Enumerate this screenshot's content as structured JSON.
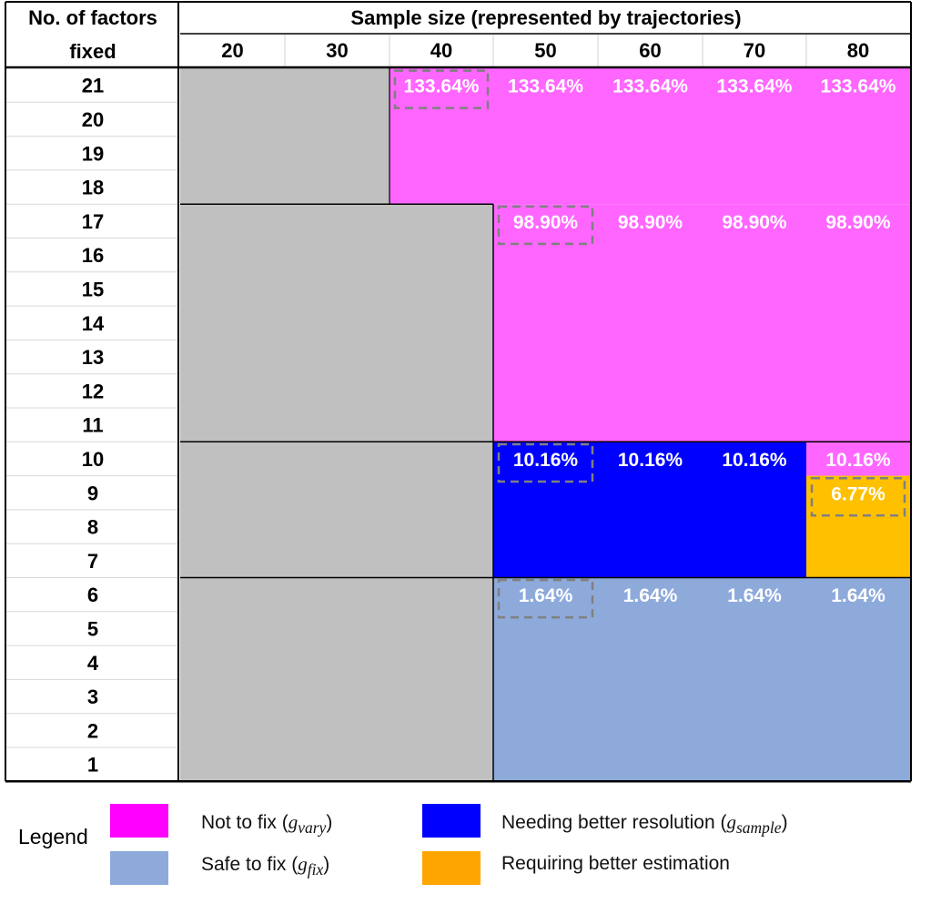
{
  "chart_data": {
    "type": "table",
    "header": {
      "row_header_line1": "No. of factors",
      "row_header_line2": "fixed",
      "column_group": "Sample size (represented by trajectories)"
    },
    "columns": [
      "20",
      "30",
      "40",
      "50",
      "60",
      "70",
      "80"
    ],
    "rows": [
      "21",
      "20",
      "19",
      "18",
      "17",
      "16",
      "15",
      "14",
      "13",
      "12",
      "11",
      "10",
      "9",
      "8",
      "7",
      "6",
      "5",
      "4",
      "3",
      "2",
      "1"
    ],
    "regions": [
      {
        "category": "none",
        "color": "#c0c0c0",
        "col_start": 0,
        "col_end": 1,
        "row_start": 0,
        "row_end": 3
      },
      {
        "category": "vary",
        "color": "#ff66ff",
        "col_start": 2,
        "col_end": 6,
        "row_start": 0,
        "row_end": 3
      },
      {
        "category": "none",
        "color": "#c0c0c0",
        "col_start": 0,
        "col_end": 2,
        "row_start": 4,
        "row_end": 10
      },
      {
        "category": "vary",
        "color": "#ff66ff",
        "col_start": 3,
        "col_end": 6,
        "row_start": 4,
        "row_end": 10
      },
      {
        "category": "none",
        "color": "#c0c0c0",
        "col_start": 0,
        "col_end": 2,
        "row_start": 11,
        "row_end": 14
      },
      {
        "category": "sample",
        "color": "#0000ff",
        "col_start": 3,
        "col_end": 5,
        "row_start": 11,
        "row_end": 14
      },
      {
        "category": "vary",
        "color": "#ff66ff",
        "col_start": 6,
        "col_end": 6,
        "row_start": 11,
        "row_end": 11
      },
      {
        "category": "estimation",
        "color": "#ffc000",
        "col_start": 6,
        "col_end": 6,
        "row_start": 12,
        "row_end": 14
      },
      {
        "category": "none",
        "color": "#c0c0c0",
        "col_start": 0,
        "col_end": 2,
        "row_start": 15,
        "row_end": 20
      },
      {
        "category": "fix",
        "color": "#8eaadb",
        "col_start": 3,
        "col_end": 6,
        "row_start": 15,
        "row_end": 20
      }
    ],
    "cell_labels": [
      {
        "col": 2,
        "row": 0,
        "text": "133.64%",
        "boxed": true
      },
      {
        "col": 3,
        "row": 0,
        "text": "133.64%"
      },
      {
        "col": 4,
        "row": 0,
        "text": "133.64%"
      },
      {
        "col": 5,
        "row": 0,
        "text": "133.64%"
      },
      {
        "col": 6,
        "row": 0,
        "text": "133.64%"
      },
      {
        "col": 3,
        "row": 4,
        "text": "98.90%",
        "boxed": true
      },
      {
        "col": 4,
        "row": 4,
        "text": "98.90%"
      },
      {
        "col": 5,
        "row": 4,
        "text": "98.90%"
      },
      {
        "col": 6,
        "row": 4,
        "text": "98.90%"
      },
      {
        "col": 3,
        "row": 11,
        "text": "10.16%",
        "boxed": true
      },
      {
        "col": 4,
        "row": 11,
        "text": "10.16%"
      },
      {
        "col": 5,
        "row": 11,
        "text": "10.16%"
      },
      {
        "col": 6,
        "row": 11,
        "text": "10.16%"
      },
      {
        "col": 6,
        "row": 12,
        "text": "6.77%",
        "boxed": true
      },
      {
        "col": 3,
        "row": 15,
        "text": "1.64%",
        "boxed": true
      },
      {
        "col": 4,
        "row": 15,
        "text": "1.64%"
      },
      {
        "col": 5,
        "row": 15,
        "text": "1.64%"
      },
      {
        "col": 6,
        "row": 15,
        "text": "1.64%"
      }
    ],
    "legend": {
      "title": "Legend",
      "items": [
        {
          "category": "vary",
          "color": "#ff00ff",
          "label": "Not to fix (",
          "sym": "g",
          "sub": "vary",
          "close": ")"
        },
        {
          "category": "sample",
          "color": "#0000ff",
          "label": "Needing better resolution (",
          "sym": "g",
          "sub": "sample",
          "close": ")"
        },
        {
          "category": "fix",
          "color": "#8eaadb",
          "label": "Safe to fix (",
          "sym": "g",
          "sub": "fix",
          "close": ")"
        },
        {
          "category": "estimation",
          "color": "#ffa500",
          "label": "Requiring better estimation",
          "sym": "",
          "sub": "",
          "close": ""
        }
      ]
    }
  }
}
